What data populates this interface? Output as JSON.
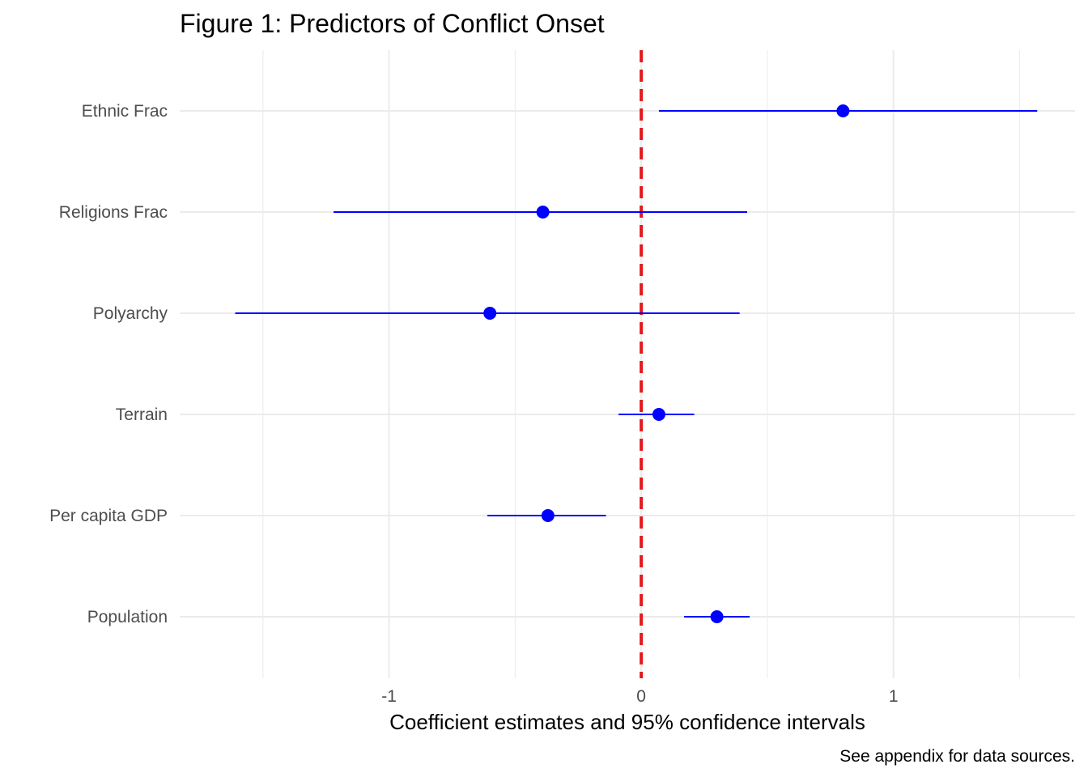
{
  "chart_data": {
    "type": "scatter",
    "style": "coefficient-plot",
    "title": "Figure 1: Predictors of Conflict Onset",
    "xlabel": "Coefficient estimates and 95% confidence intervals",
    "ylabel": "",
    "caption": "See appendix for data sources.",
    "categories": [
      "Ethnic Frac",
      "Religions Frac",
      "Polyarchy",
      "Terrain",
      "Per capita GDP",
      "Population"
    ],
    "series": [
      {
        "estimate": [
          0.8,
          -0.39,
          -0.6,
          0.07,
          -0.37,
          0.3
        ],
        "ci_low": [
          0.07,
          -1.22,
          -1.61,
          -0.09,
          -0.61,
          0.17
        ],
        "ci_high": [
          1.57,
          0.42,
          0.39,
          0.21,
          -0.14,
          0.43
        ]
      }
    ],
    "xlim": [
      -1.83,
      1.72
    ],
    "xticks": [
      -1,
      0,
      1
    ],
    "xtick_labels": [
      "-1",
      "0",
      "1"
    ],
    "reference_line": {
      "x": 0,
      "style": "dashed",
      "color": "#e31a1c"
    },
    "grid": true,
    "colors": {
      "point": "#0000ff",
      "interval": "#0000ff",
      "grid": "#ebebeb",
      "text": "#4d4d4d"
    }
  }
}
